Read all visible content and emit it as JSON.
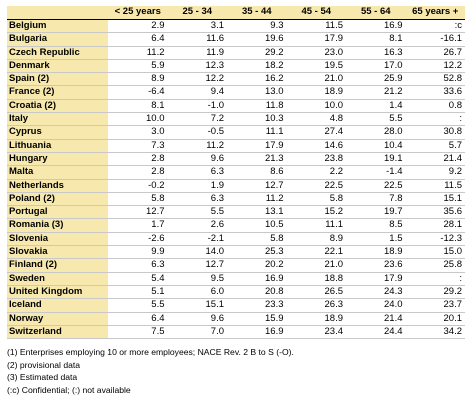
{
  "headers": [
    "",
    "< 25 years",
    "25 - 34",
    "35 - 44",
    "45 - 54",
    "55 - 64",
    "65 years +"
  ],
  "rows": [
    {
      "country": "Belgium",
      "values": [
        "2.9",
        "3.1",
        "9.3",
        "11.5",
        "16.9",
        ":c"
      ]
    },
    {
      "country": "Bulgaria",
      "values": [
        "6.4",
        "11.6",
        "19.6",
        "17.9",
        "8.1",
        "-16.1"
      ]
    },
    {
      "country": "Czech Republic",
      "values": [
        "11.2",
        "11.9",
        "29.2",
        "23.0",
        "16.3",
        "26.7"
      ]
    },
    {
      "country": "Denmark",
      "values": [
        "5.9",
        "12.3",
        "18.2",
        "19.5",
        "17.0",
        "12.2"
      ]
    },
    {
      "country": "Spain (2)",
      "values": [
        "8.9",
        "12.2",
        "16.2",
        "21.0",
        "25.9",
        "52.8"
      ]
    },
    {
      "country": "France (2)",
      "values": [
        "-6.4",
        "9.4",
        "13.0",
        "18.9",
        "21.2",
        "33.6"
      ]
    },
    {
      "country": "Croatia (2)",
      "values": [
        "8.1",
        "-1.0",
        "11.8",
        "10.0",
        "1.4",
        "0.8"
      ]
    },
    {
      "country": "Italy",
      "values": [
        "10.0",
        "7.2",
        "10.3",
        "4.8",
        "5.5",
        ":"
      ]
    },
    {
      "country": "Cyprus",
      "values": [
        "3.0",
        "-0.5",
        "11.1",
        "27.4",
        "28.0",
        "30.8"
      ]
    },
    {
      "country": "Lithuania",
      "values": [
        "7.3",
        "11.2",
        "17.9",
        "14.6",
        "10.4",
        "5.7"
      ]
    },
    {
      "country": "Hungary",
      "values": [
        "2.8",
        "9.6",
        "21.3",
        "23.8",
        "19.1",
        "21.4"
      ]
    },
    {
      "country": "Malta",
      "values": [
        "2.8",
        "6.3",
        "8.6",
        "2.2",
        "-1.4",
        "9.2"
      ]
    },
    {
      "country": "Netherlands",
      "values": [
        "-0.2",
        "1.9",
        "12.7",
        "22.5",
        "22.5",
        "11.5"
      ]
    },
    {
      "country": "Poland (2)",
      "values": [
        "5.8",
        "6.3",
        "11.2",
        "5.8",
        "7.8",
        "15.1"
      ]
    },
    {
      "country": "Portugal",
      "values": [
        "12.7",
        "5.5",
        "13.1",
        "15.2",
        "19.7",
        "35.6"
      ]
    },
    {
      "country": "Romania (3)",
      "values": [
        "1.7",
        "2.6",
        "10.5",
        "11.1",
        "8.5",
        "28.1"
      ]
    },
    {
      "country": "Slovenia",
      "values": [
        "-2.6",
        "-2.1",
        "5.8",
        "8.9",
        "1.5",
        "-12.3"
      ]
    },
    {
      "country": "Slovakia",
      "values": [
        "9.9",
        "14.0",
        "25.3",
        "22.1",
        "18.9",
        "15.0"
      ]
    },
    {
      "country": "Finland (2)",
      "values": [
        "6.3",
        "12.7",
        "20.2",
        "21.0",
        "23.6",
        "25.8"
      ]
    },
    {
      "country": "Sweden",
      "values": [
        "5.4",
        "9.5",
        "16.9",
        "18.8",
        "17.9",
        ":"
      ]
    },
    {
      "country": "United Kingdom",
      "values": [
        "5.1",
        "6.0",
        "20.8",
        "26.5",
        "24.3",
        "29.2"
      ]
    }
  ],
  "efta_rows": [
    {
      "country": "Iceland",
      "values": [
        "5.5",
        "15.1",
        "23.3",
        "26.3",
        "24.0",
        "23.7"
      ]
    },
    {
      "country": "Norway",
      "values": [
        "6.4",
        "9.6",
        "15.9",
        "18.9",
        "21.4",
        "20.1"
      ]
    },
    {
      "country": "Switzerland",
      "values": [
        "7.5",
        "7.0",
        "16.9",
        "23.4",
        "24.4",
        "34.2"
      ]
    }
  ],
  "notes": [
    "(1) Enterprises employing 10 or more employees; NACE Rev. 2 B to S (-O).",
    "(2) provisional data",
    "(3) Estimated data",
    "(:c) Confidential;  (:) not available"
  ]
}
